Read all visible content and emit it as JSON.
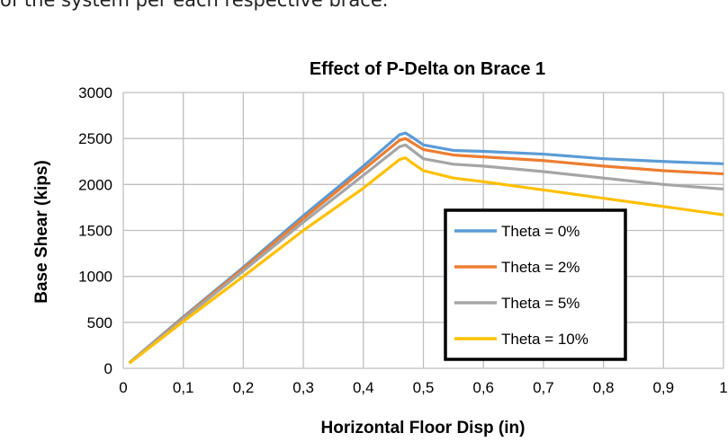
{
  "caption": "of the system per each respective brace.",
  "chart_data": {
    "type": "line",
    "title": "Effect of P-Delta on Brace 1",
    "xlabel": "Horizontal Floor Disp (in)",
    "ylabel": "Base Shear (kips)",
    "xlim": [
      0,
      1
    ],
    "ylim": [
      0,
      3000
    ],
    "xticks": [
      "0",
      "0,1",
      "0,2",
      "0,3",
      "0,4",
      "0,5",
      "0,6",
      "0,7",
      "0,8",
      "0,9",
      "1"
    ],
    "yticks": [
      "0",
      "500",
      "1000",
      "1500",
      "2000",
      "2500",
      "3000"
    ],
    "grid": true,
    "legend_position": "center-right",
    "series": [
      {
        "name": "Theta = 0%",
        "color": "#5B9BD5",
        "x": [
          0.01,
          0.1,
          0.2,
          0.3,
          0.4,
          0.46,
          0.47,
          0.48,
          0.5,
          0.55,
          0.6,
          0.7,
          0.8,
          0.9,
          1.0
        ],
        "y": [
          60,
          560,
          1100,
          1660,
          2200,
          2540,
          2560,
          2520,
          2430,
          2370,
          2360,
          2330,
          2280,
          2250,
          2225
        ]
      },
      {
        "name": "Theta = 2%",
        "color": "#ED7D31",
        "x": [
          0.01,
          0.1,
          0.2,
          0.3,
          0.4,
          0.46,
          0.47,
          0.48,
          0.5,
          0.55,
          0.6,
          0.7,
          0.8,
          0.9,
          1.0
        ],
        "y": [
          60,
          550,
          1085,
          1630,
          2160,
          2480,
          2500,
          2460,
          2380,
          2320,
          2300,
          2260,
          2200,
          2150,
          2115
        ]
      },
      {
        "name": "Theta = 5%",
        "color": "#A5A5A5",
        "x": [
          0.01,
          0.1,
          0.2,
          0.3,
          0.4,
          0.46,
          0.47,
          0.48,
          0.5,
          0.55,
          0.6,
          0.7,
          0.8,
          0.9,
          1.0
        ],
        "y": [
          60,
          540,
          1060,
          1590,
          2100,
          2410,
          2430,
          2380,
          2280,
          2220,
          2200,
          2140,
          2070,
          2000,
          1950
        ]
      },
      {
        "name": "Theta = 10%",
        "color": "#FFC000",
        "x": [
          0.01,
          0.1,
          0.2,
          0.3,
          0.4,
          0.46,
          0.47,
          0.48,
          0.5,
          0.55,
          0.6,
          0.7,
          0.8,
          0.9,
          1.0
        ],
        "y": [
          55,
          510,
          1000,
          1500,
          1960,
          2270,
          2290,
          2240,
          2150,
          2070,
          2030,
          1940,
          1850,
          1760,
          1670
        ]
      }
    ]
  }
}
